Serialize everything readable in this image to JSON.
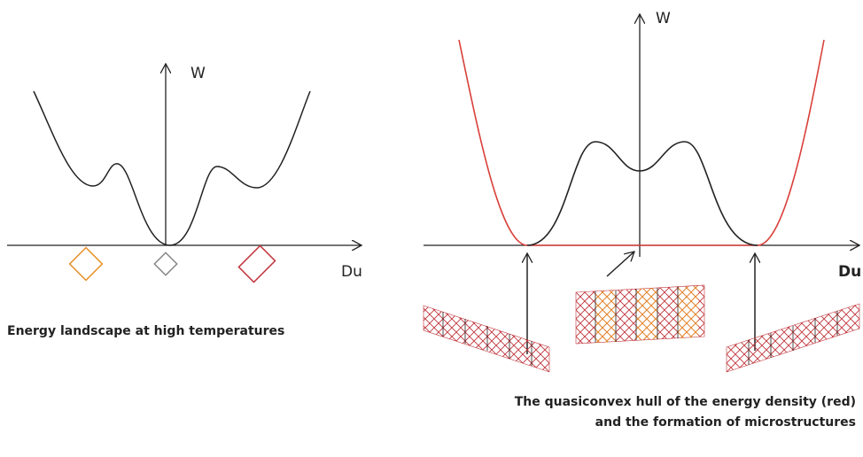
{
  "left": {
    "axis_y": "W",
    "axis_x": "Du",
    "caption": "Energy landscape at high temperatures"
  },
  "right": {
    "axis_y": "W",
    "axis_x": "Du",
    "caption": [
      "The quasiconvex hull of the energy density (red)",
      "and the formation of microstructures"
    ]
  }
}
